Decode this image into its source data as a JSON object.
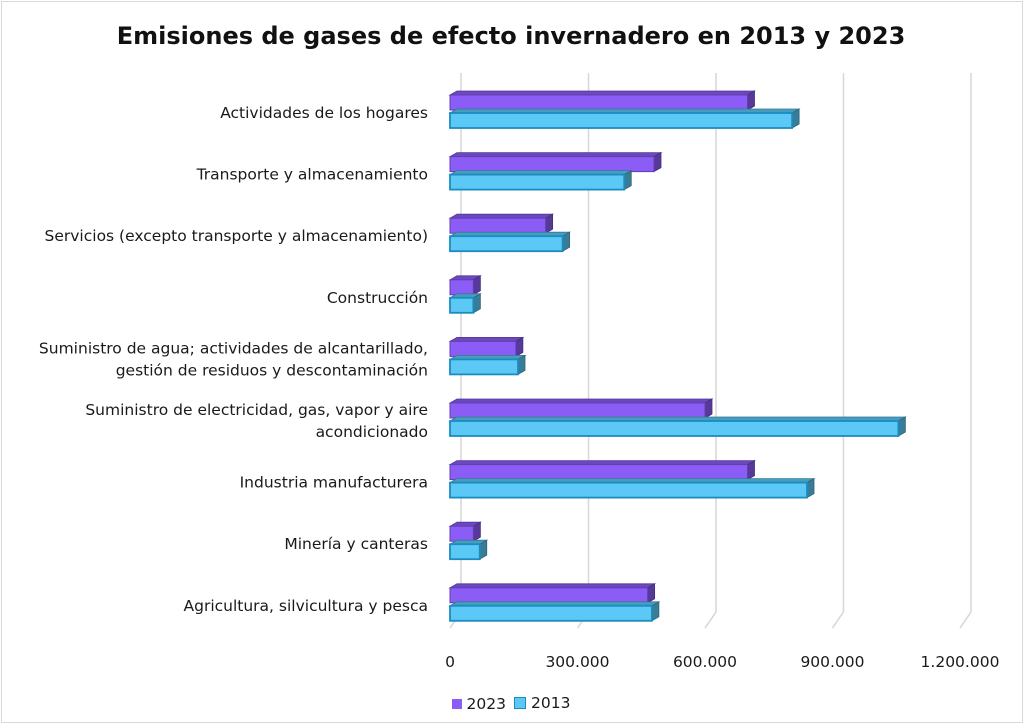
{
  "chart_data": {
    "type": "bar",
    "orientation": "horizontal",
    "title": "Emisiones de gases de efecto invernadero en 2013 y 2023",
    "categories": [
      "Actividades de los hogares",
      "Transporte y almacenamiento",
      "Servicios (excepto transporte y almacenamiento)",
      "Construcción",
      "Suministro de agua; actividades de alcantarillado, gestión de residuos y descontaminación",
      "Suministro de electricidad, gas, vapor y aire acondicionado",
      "Industria manufacturera",
      "Minería y canteras",
      "Agricultura, silvicultura y pesca"
    ],
    "category_lines": [
      [
        "Actividades de los hogares"
      ],
      [
        "Transporte y almacenamiento"
      ],
      [
        "Servicios (excepto transporte y almacenamiento)"
      ],
      [
        "Construcción"
      ],
      [
        "Suministro de agua; actividades de alcantarillado,",
        "gestión de residuos y descontaminación"
      ],
      [
        "Suministro de electricidad, gas, vapor y aire",
        "acondicionado"
      ],
      [
        "Industria manufacturera"
      ],
      [
        "Minería y canteras"
      ],
      [
        "Agricultura, silvicultura y pesca"
      ]
    ],
    "series": [
      {
        "name": "2023",
        "color": "#8b5cf6",
        "values": [
          700000,
          480000,
          225000,
          55000,
          155000,
          600000,
          700000,
          55000,
          465000
        ]
      },
      {
        "name": "2013",
        "color": "#5bc8f5",
        "values": [
          805000,
          410000,
          265000,
          55000,
          160000,
          1055000,
          840000,
          70000,
          475000
        ]
      }
    ],
    "xlim": [
      0,
      1200000
    ],
    "xticks": [
      0,
      300000,
      600000,
      900000,
      1200000
    ],
    "xtick_labels": [
      "0",
      "300.000",
      "600.000",
      "900.000",
      "1.200.000"
    ],
    "grid": true,
    "legend_position": "bottom"
  }
}
